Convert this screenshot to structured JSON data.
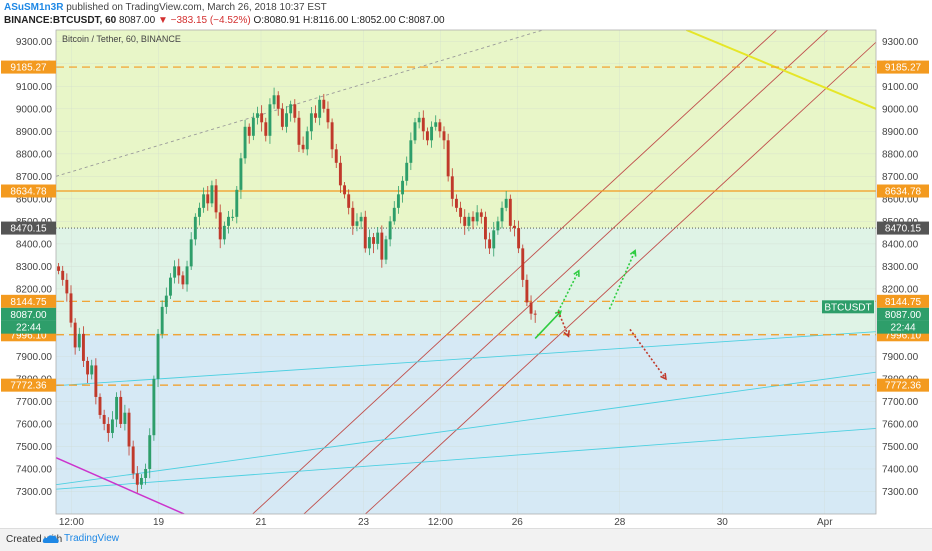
{
  "header": {
    "author": "ASuSM1n3R",
    "published": "published on TradingView.com, March 26, 2018 10:37 EST",
    "symbol": "BINANCE:BTCUSDT, 60",
    "last": "8087.00",
    "change": "−383.15 (−4.52%)",
    "ohlc": "O:8080.91 H:8116.00 L:8052.00 C:8087.00"
  },
  "footer": {
    "created": "Created with",
    "brand": "TradingView"
  },
  "colors": {
    "up": "#2e9e6a",
    "down": "#c0392b",
    "orange": "#f39a1f",
    "tv_blue": "#1e88e5"
  },
  "chart_data": {
    "type": "candlestick",
    "title": "Bitcoin / Tether, 60, BINANCE",
    "y_range": [
      7200,
      9350
    ],
    "y_ticks": [
      7300,
      7400,
      7500,
      7600,
      7700,
      7800,
      7900,
      8000,
      8100,
      8200,
      8300,
      8400,
      8500,
      8600,
      8700,
      8800,
      8900,
      9000,
      9100,
      9200,
      9300
    ],
    "y_tick_labels": [
      "7300.00",
      "7400.00",
      "7500.00",
      "7600.00",
      "7700.00",
      "7800.00",
      "7900.00",
      "8000.00",
      "8100.00",
      "8200.00",
      "8300.00",
      "8400.00",
      "8500.00",
      "8600.00",
      "8700.00",
      "8800.00",
      "8900.00",
      "9000.00",
      "9100.00",
      "9200.00",
      "9300.00"
    ],
    "x_range": [
      0,
      16
    ],
    "x_ticks": [
      {
        "x": 0.3,
        "label": "12:00"
      },
      {
        "x": 2.0,
        "label": "19"
      },
      {
        "x": 4.0,
        "label": "21"
      },
      {
        "x": 6.0,
        "label": "23"
      },
      {
        "x": 7.5,
        "label": "12:00"
      },
      {
        "x": 9.0,
        "label": "26"
      },
      {
        "x": 11.0,
        "label": "28"
      },
      {
        "x": 13.0,
        "label": "30"
      },
      {
        "x": 15.0,
        "label": "Apr"
      }
    ],
    "price_levels": [
      {
        "value": 9185.27,
        "label": "9185.27",
        "style": "dashed",
        "color": "#f39a1f"
      },
      {
        "value": 8634.78,
        "label": "8634.78",
        "style": "solid",
        "color": "#f39a1f"
      },
      {
        "value": 8470.15,
        "label": "8470.15",
        "style": "dotted",
        "color": "#444444"
      },
      {
        "value": 8144.75,
        "label": "8144.75",
        "style": "dashed",
        "color": "#f39a1f"
      },
      {
        "value": 7996.1,
        "label": "7996.10",
        "style": "dashed",
        "color": "#f39a1f"
      },
      {
        "value": 7772.36,
        "label": "7772.36",
        "style": "dashed",
        "color": "#f39a1f"
      }
    ],
    "side_tags": [
      {
        "value": 8087.0,
        "label": "8087.00",
        "color": "#2e9e6a"
      },
      {
        "value": 8030,
        "label": "22:44",
        "color": "#2e9e6a"
      }
    ],
    "symbol_tag": {
      "value": 8087.0,
      "label": "BTCUSDT"
    },
    "zones": [
      {
        "from": 8470.15,
        "to": 9350,
        "color": "#e8f6c8"
      },
      {
        "from": 7996.1,
        "to": 8470.15,
        "color": "#dff3e6"
      },
      {
        "from": 7200,
        "to": 7996.1,
        "color": "#d6e9f5"
      }
    ],
    "candles_close": [
      8280,
      8240,
      8180,
      8050,
      7940,
      8000,
      7880,
      7820,
      7860,
      7720,
      7640,
      7600,
      7560,
      7620,
      7720,
      7600,
      7650,
      7500,
      7380,
      7330,
      7360,
      7400,
      7550,
      7800,
      8000,
      8120,
      8170,
      8250,
      8300,
      8260,
      8220,
      8300,
      8420,
      8520,
      8560,
      8620,
      8580,
      8660,
      8540,
      8420,
      8480,
      8520,
      8520,
      8640,
      8780,
      8920,
      8880,
      8960,
      8980,
      8940,
      8880,
      9020,
      9060,
      9000,
      8920,
      8980,
      9020,
      8960,
      8840,
      8820,
      8900,
      8980,
      8960,
      9040,
      9000,
      8940,
      8820,
      8760,
      8660,
      8620,
      8560,
      8480,
      8500,
      8520,
      8380,
      8430,
      8400,
      8450,
      8330,
      8420,
      8500,
      8560,
      8620,
      8680,
      8760,
      8860,
      8940,
      8960,
      8900,
      8860,
      8920,
      8940,
      8900,
      8860,
      8700,
      8600,
      8560,
      8520,
      8480,
      8520,
      8500,
      8540,
      8520,
      8420,
      8380,
      8460,
      8500,
      8560,
      8600,
      8480,
      8470,
      8380,
      8240,
      8140,
      8090,
      8087
    ],
    "trend_lines": [
      {
        "name": "channel-line-top",
        "x1": 3.6,
        "y1": 7150,
        "x2": 14.2,
        "y2": 9380,
        "color": "#c0504d"
      },
      {
        "name": "channel-line-mid",
        "x1": 4.6,
        "y1": 7150,
        "x2": 15.2,
        "y2": 9380,
        "color": "#c0504d"
      },
      {
        "name": "channel-line-low",
        "x1": 5.8,
        "y1": 7150,
        "x2": 16.4,
        "y2": 9380,
        "color": "#c0504d"
      },
      {
        "name": "resistance-line",
        "x1": 12.3,
        "y1": 9350,
        "x2": 16.0,
        "y2": 9000,
        "color": "#e6e628"
      },
      {
        "name": "support-line-1",
        "x1": 0,
        "y1": 7770,
        "x2": 16.0,
        "y2": 8010,
        "color": "#4dd0e1"
      },
      {
        "name": "support-line-2",
        "x1": 0,
        "y1": 7330,
        "x2": 16.0,
        "y2": 7830,
        "color": "#4dd0e1"
      },
      {
        "name": "support-line-3",
        "x1": 0,
        "y1": 7310,
        "x2": 16.0,
        "y2": 7580,
        "color": "#4dd0e1"
      },
      {
        "name": "magenta-line",
        "x1": 0,
        "y1": 7450,
        "x2": 2.5,
        "y2": 7200,
        "color": "#cc33cc"
      },
      {
        "name": "grey-dashed-line",
        "x1": 0,
        "y1": 8700,
        "x2": 9.5,
        "y2": 9350,
        "color": "#999999"
      }
    ],
    "arrows": [
      {
        "x1": 9.35,
        "y1": 7980,
        "x2": 9.85,
        "y2": 8100,
        "color": "#2ecc40",
        "style": "solid"
      },
      {
        "x1": 9.8,
        "y1": 8100,
        "x2": 10.2,
        "y2": 8280,
        "color": "#2ecc40",
        "style": "dotted"
      },
      {
        "x1": 10.8,
        "y1": 8110,
        "x2": 11.3,
        "y2": 8370,
        "color": "#2ecc40",
        "style": "dotted"
      },
      {
        "x1": 9.8,
        "y1": 8100,
        "x2": 10.0,
        "y2": 7990,
        "color": "#c0392b",
        "style": "dotted"
      },
      {
        "x1": 11.2,
        "y1": 8020,
        "x2": 11.9,
        "y2": 7800,
        "color": "#c0392b",
        "style": "dotted"
      }
    ]
  }
}
